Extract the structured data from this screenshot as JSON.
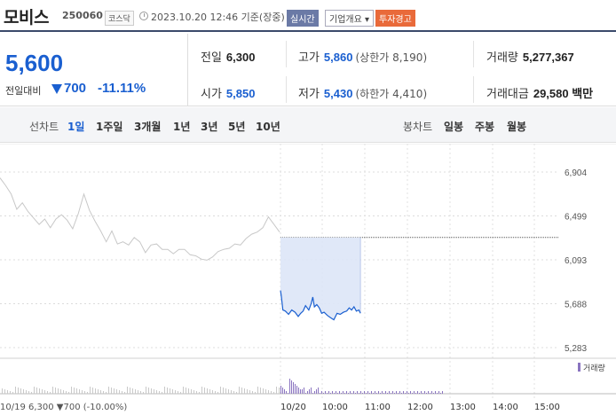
{
  "header": {
    "title": "모비스",
    "code": "250060",
    "market": "코스닥",
    "datetime": "2023.10.20 12:46 기준(장중)",
    "btn_realtime": "실시간",
    "btn_company": "기업개요 ▾",
    "btn_warning": "투자경고"
  },
  "price": {
    "current": "5,600",
    "change_label": "전일대비",
    "change_amount": "700",
    "change_percent": "-11.11%",
    "direction": "down"
  },
  "stats": {
    "prev_close_label": "전일",
    "prev_close": "6,300",
    "high_label": "고가",
    "high": "5,860",
    "upper_limit": "(상한가 8,190)",
    "volume_label": "거래량",
    "volume": "5,277,367",
    "open_label": "시가",
    "open": "5,850",
    "low_label": "저가",
    "low": "5,430",
    "lower_limit": "(하한가 4,410)",
    "amount_label": "거래대금",
    "amount": "29,580 백만"
  },
  "tabs": {
    "line_label": "선차트",
    "line": [
      "1일",
      "1주일",
      "3개월",
      "1년",
      "3년",
      "5년",
      "10년"
    ],
    "candle_label": "봉차트",
    "candle": [
      "일봉",
      "주봉",
      "월봉"
    ]
  },
  "colors": {
    "accent": "#1a5fd0",
    "fill": "#dde6f7",
    "prev": "#c8c8c8",
    "volume": "#8a74c0"
  },
  "chart_data": {
    "type": "line",
    "y_ticks": [
      "6,904",
      "6,499",
      "6,093",
      "5,688",
      "5,283"
    ],
    "ylim": [
      5283,
      6904
    ],
    "prev_close": 6300,
    "x_ticks": [
      "10/20",
      "10:00",
      "11:00",
      "12:00",
      "13:00",
      "14:00",
      "15:00"
    ],
    "volume_label": "거래량",
    "prev_day_label": "10/19  6,300 ▼700 (-10.00%)",
    "series": [
      {
        "x": [
          0,
          0.2,
          0.4,
          0.6,
          0.8,
          1,
          1.2,
          1.4,
          1.6,
          1.8,
          2,
          2.2,
          2.4,
          2.6,
          2.8,
          3,
          3.2,
          3.4,
          3.6,
          3.8,
          4,
          4.2,
          4.4,
          4.6,
          4.8,
          5,
          5.2,
          5.4,
          5.6,
          5.8,
          6,
          6.2,
          6.4,
          6.6,
          6.8,
          7,
          7.2,
          7.4,
          7.6,
          7.8,
          8,
          8.2,
          8.4,
          8.6,
          8.8,
          9,
          9.2,
          9.4,
          9.6,
          9.8,
          10
        ],
        "values": [
          6850,
          6780,
          6700,
          6560,
          6620,
          6540,
          6480,
          6420,
          6470,
          6390,
          6470,
          6510,
          6460,
          6380,
          6520,
          6700,
          6550,
          6450,
          6360,
          6260,
          6360,
          6240,
          6260,
          6230,
          6300,
          6260,
          6160,
          6230,
          6240,
          6190,
          6190,
          6150,
          6190,
          6190,
          6140,
          6130,
          6100,
          6090,
          6120,
          6170,
          6190,
          6200,
          6240,
          6230,
          6290,
          6330,
          6350,
          6390,
          6490,
          6420,
          6350
        ]
      },
      {
        "x": [
          10,
          10.1,
          10.3,
          10.6,
          11,
          11.4,
          11.8,
          12.2,
          12.5,
          12.8,
          13.1,
          13.5,
          13.8,
          14,
          14.2,
          14.5,
          14.8,
          15.1,
          15.4,
          15.8,
          16.2,
          16.6,
          17,
          17.4,
          17.8,
          18.2,
          18.5,
          18.8,
          19.1,
          19.4,
          19.7,
          19.9
        ],
        "values": [
          5810,
          5760,
          5630,
          5620,
          5590,
          5630,
          5610,
          5570,
          5600,
          5620,
          5670,
          5630,
          5690,
          5750,
          5660,
          5680,
          5650,
          5600,
          5610,
          5580,
          5560,
          5540,
          5600,
          5590,
          5610,
          5620,
          5650,
          5630,
          5660,
          5620,
          5630,
          5600
        ]
      }
    ]
  }
}
